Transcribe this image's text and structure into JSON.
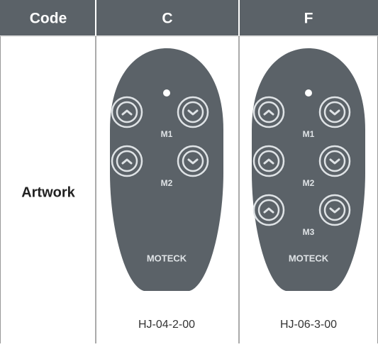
{
  "header": {
    "cells": [
      "Code",
      "C",
      "F"
    ]
  },
  "row": {
    "label": "Artwork",
    "items": [
      {
        "buttons": [
          "M1",
          "M2"
        ],
        "brand": "MOTECK",
        "code": "HJ-04-2-00"
      },
      {
        "buttons": [
          "M1",
          "M2",
          "M3"
        ],
        "brand": "MOTECK",
        "code": "HJ-06-3-00"
      }
    ]
  }
}
